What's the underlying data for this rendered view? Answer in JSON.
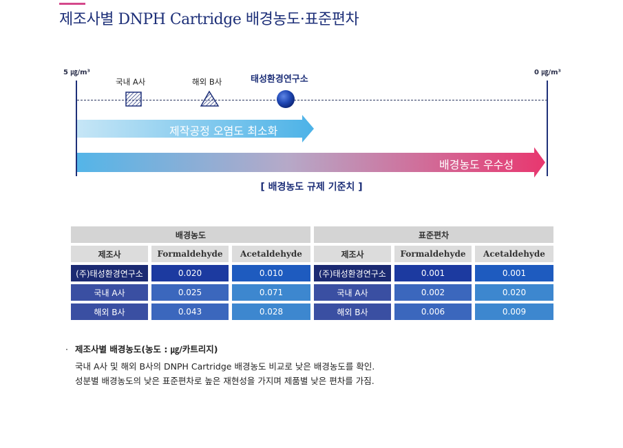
{
  "title": "제조사별 DNPH Cartridge 배경농도·표준편차",
  "diagram": {
    "scale_left": "5 ㎍/m³",
    "scale_right": "0 ㎍/m³",
    "markers": [
      {
        "label": "국내 A사",
        "icon": "hatched-square-icon"
      },
      {
        "label": "해외 B사",
        "icon": "hatched-triangle-icon"
      },
      {
        "label": "태성환경연구소",
        "icon": "blue-sphere-icon"
      }
    ],
    "arrow1": "제작공정 오염도 최소화",
    "arrow2": "배경농도 우수성",
    "caption": "[ 배경농도 규제 기준치 ]",
    "colors": {
      "navy": "#1d2f78",
      "accent": "#d4488b",
      "arrow1": "#54b5e8",
      "arrow2_end": "#e8376f"
    }
  },
  "table": {
    "group_left": "배경농도",
    "group_right": "표준편차",
    "headers": [
      "제조사",
      "Formaldehyde",
      "Acetaldehyde",
      "제조사",
      "Formaldehyde",
      "Acetaldehyde"
    ],
    "rows": [
      {
        "maker": "(주)태성환경연구소",
        "bg_form": "0.020",
        "bg_acet": "0.010",
        "maker2": "(주)태성환경연구소",
        "sd_form": "0.001",
        "sd_acet": "0.001"
      },
      {
        "maker": "국내 A사",
        "bg_form": "0.025",
        "bg_acet": "0.071",
        "maker2": "국내 A사",
        "sd_form": "0.002",
        "sd_acet": "0.020"
      },
      {
        "maker": "해외 B사",
        "bg_form": "0.043",
        "bg_acet": "0.028",
        "maker2": "해외 B사",
        "sd_form": "0.006",
        "sd_acet": "0.009"
      }
    ]
  },
  "notes": {
    "bullet": "·",
    "heading": "제조사별 배경농도(농도 : ㎍/카트리지)",
    "line1": "국내 A사 및 해외 B사의 DNPH Cartridge 배경농도 비교로 낮은 배경농도를 확인.",
    "line2": "성분별 배경농도의 낮은 표준편차로 높은 재현성을 가지며 제품별 낮은 편차를 가짐."
  }
}
